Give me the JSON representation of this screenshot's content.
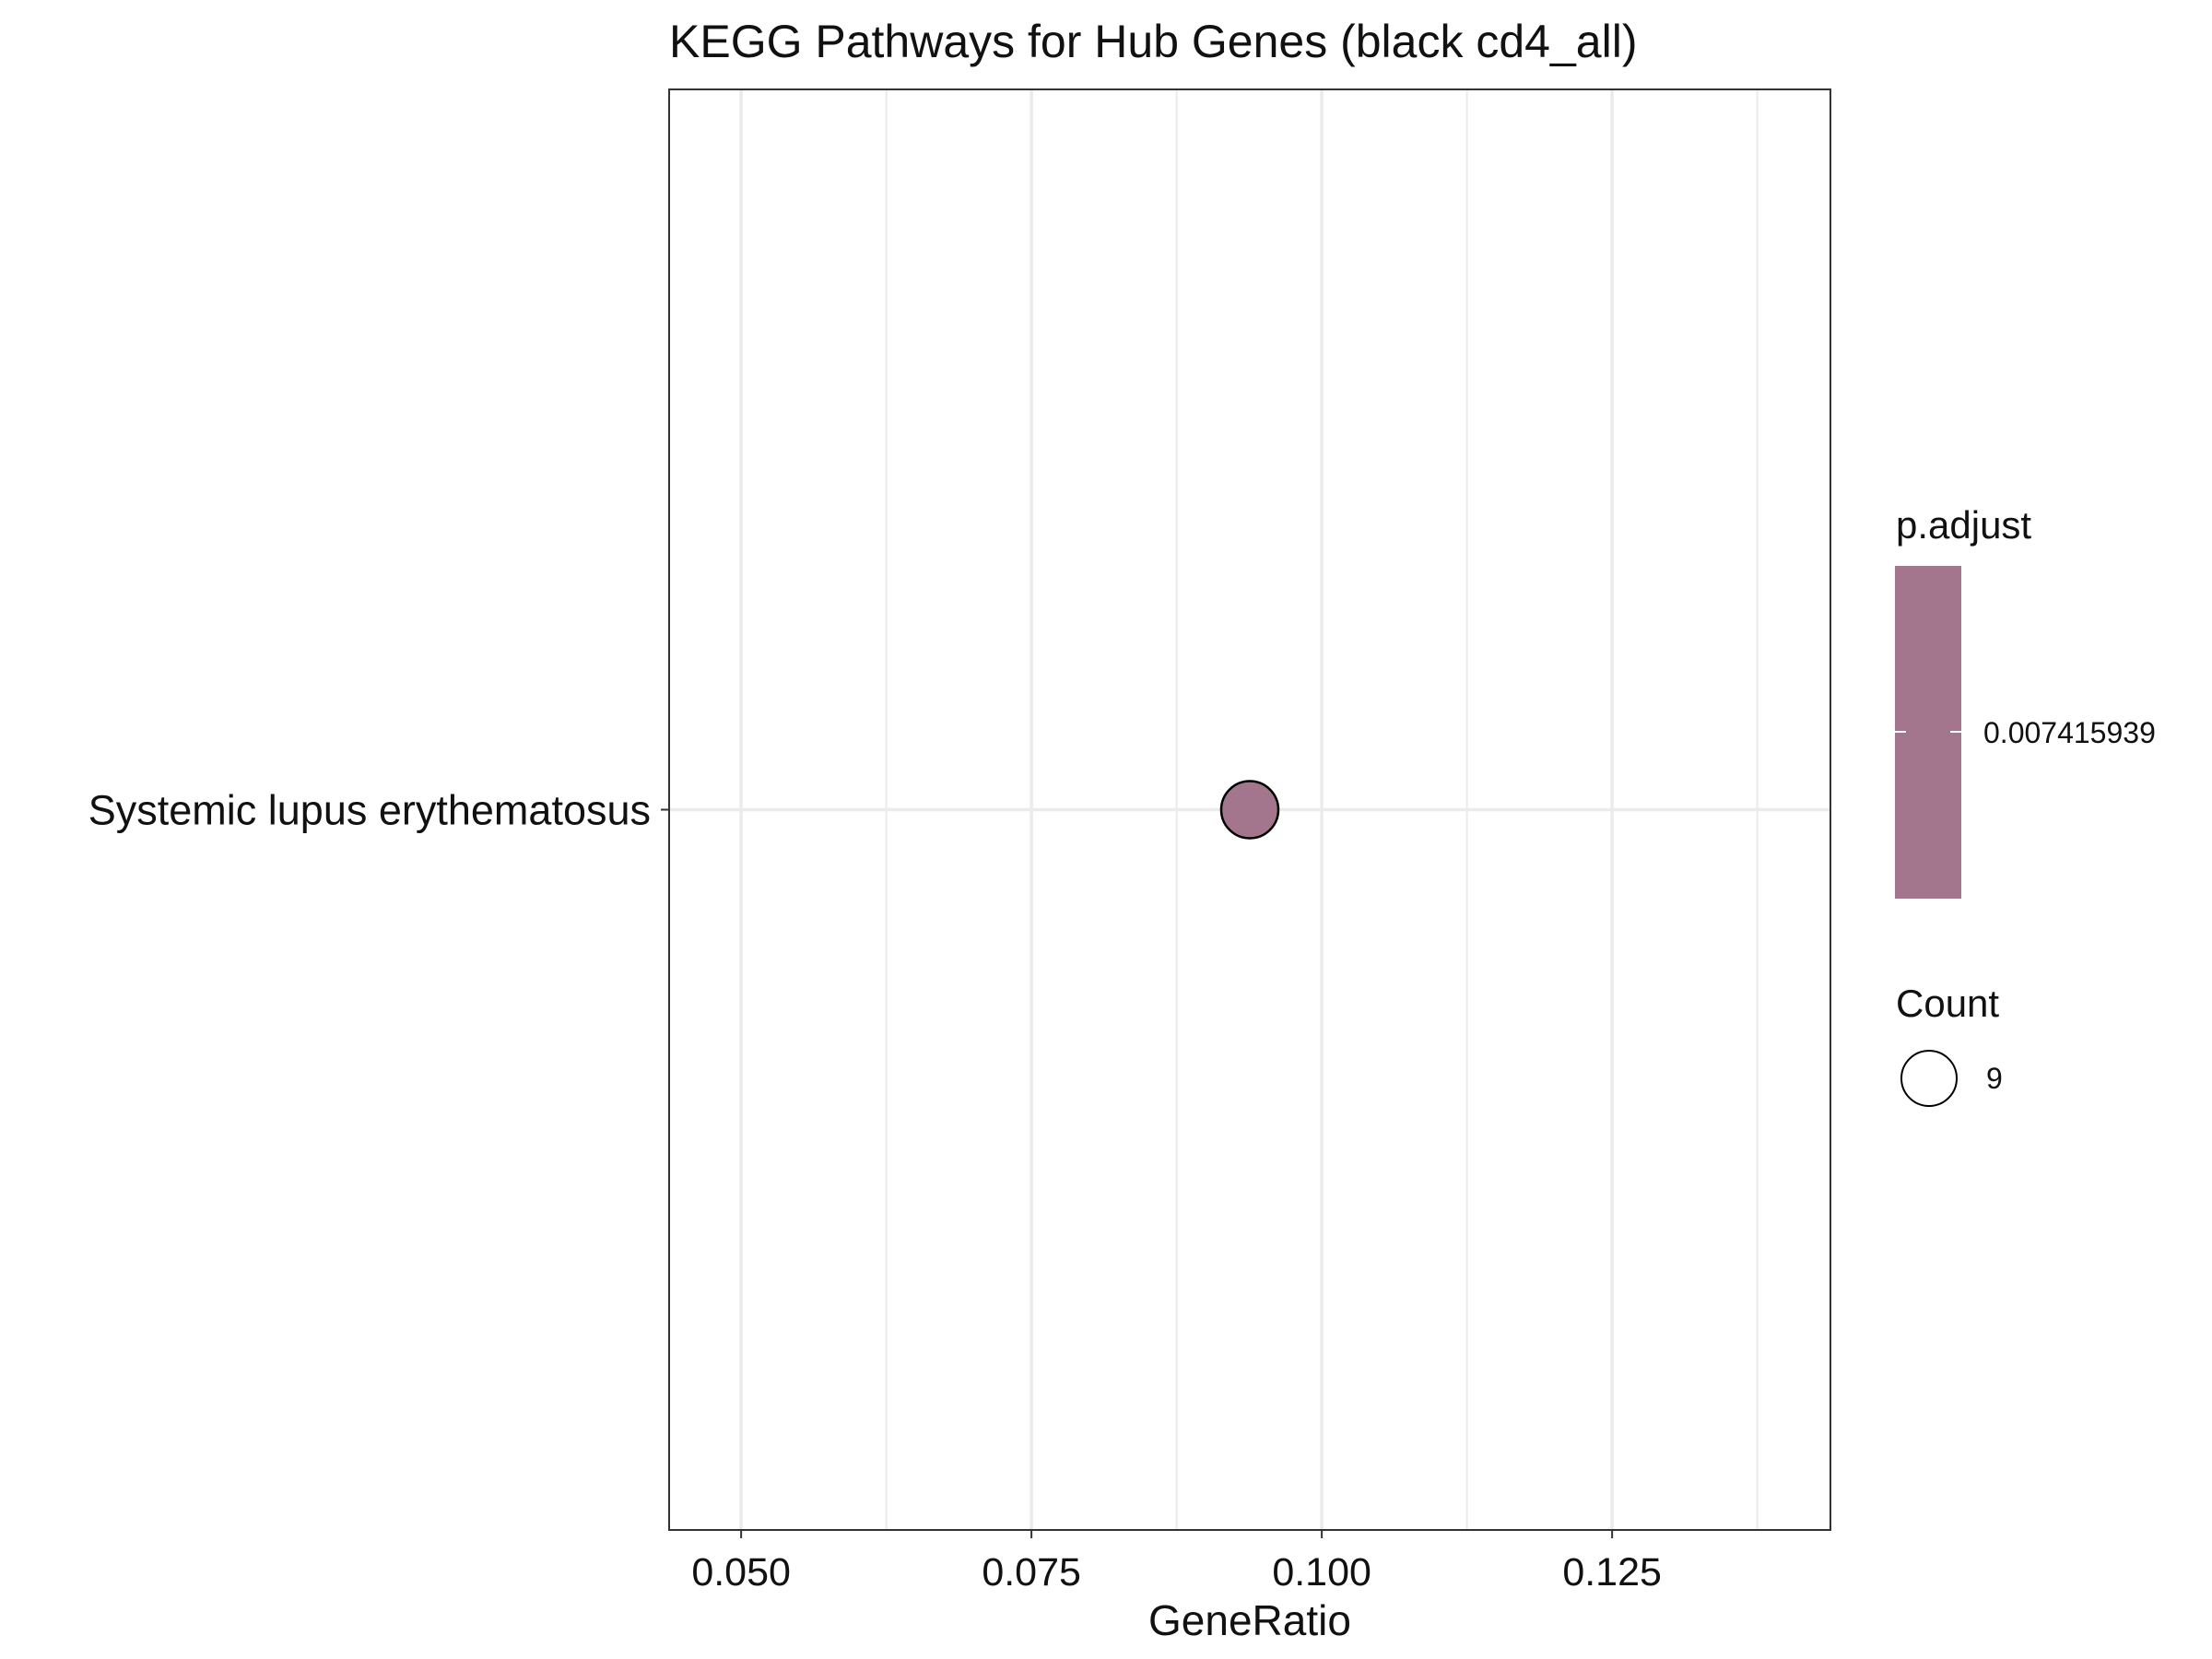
{
  "chart_data": {
    "type": "scatter",
    "title": "KEGG Pathways for Hub Genes (black cd4_all)",
    "xlabel": "GeneRatio",
    "ylabel": "",
    "xlim": [
      0.0438,
      0.1438
    ],
    "x_ticks": [
      "0.050",
      "0.075",
      "0.100",
      "0.125"
    ],
    "x_tick_values": [
      0.05,
      0.075,
      0.1,
      0.125
    ],
    "x_minor_grid": [
      0.0625,
      0.0875,
      0.1125,
      0.1375
    ],
    "categories": [
      "Systemic lupus erythematosus"
    ],
    "points": [
      {
        "term": "Systemic lupus erythematosus",
        "gene_ratio": 0.0938,
        "count": 9,
        "p_adjust": 0.007415939
      }
    ],
    "grid": true,
    "legend_position": "right",
    "legend": {
      "color": {
        "title": "p.adjust",
        "labels": [
          "0.007415939"
        ],
        "color": "#a4768d"
      },
      "size": {
        "title": "Count",
        "labels": [
          "9"
        ]
      }
    },
    "colors": {
      "point": "#a4768d",
      "grid": "#ebebeb",
      "border": "#333333"
    }
  }
}
